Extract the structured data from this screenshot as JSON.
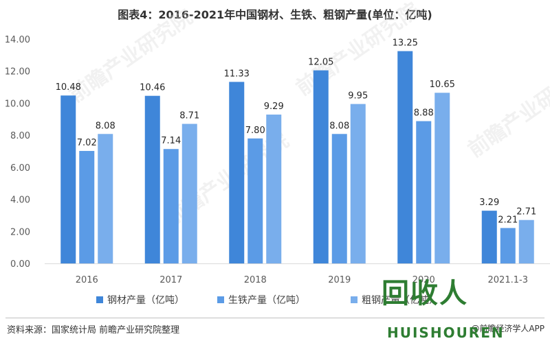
{
  "chart_data": {
    "type": "bar",
    "title": "图表4：2016-2021年中国钢材、生铁、粗钢产量(单位：亿吨)",
    "categories": [
      "2016",
      "2017",
      "2018",
      "2019",
      "2020",
      "2021.1-3"
    ],
    "series": [
      {
        "name": "钢材产量（亿吨）",
        "values": [
          10.48,
          10.46,
          11.33,
          12.05,
          13.25,
          3.29
        ],
        "labels": [
          "10.48",
          "10.46",
          "11.33",
          "12.05",
          "13.25",
          "3.29"
        ]
      },
      {
        "name": "生铁产量（亿吨）",
        "values": [
          7.02,
          7.14,
          7.8,
          8.08,
          8.88,
          2.21
        ],
        "labels": [
          "7.02",
          "7.14",
          "7.80",
          "8.08",
          "8.88",
          "2.21"
        ]
      },
      {
        "name": "粗钢产量（亿吨）",
        "values": [
          8.08,
          8.71,
          9.29,
          9.95,
          10.65,
          2.71
        ],
        "labels": [
          "8.08",
          "8.71",
          "9.29",
          "9.95",
          "10.65",
          "2.71"
        ]
      }
    ],
    "y_ticks": [
      "0.00",
      "2.00",
      "4.00",
      "6.00",
      "8.00",
      "10.00",
      "12.00",
      "14.00"
    ],
    "ylim": [
      0,
      14
    ],
    "xlabel": "",
    "ylabel": "",
    "grid": false,
    "legend": "bottom"
  },
  "colors": {
    "series": [
      "#3f86d9",
      "#5b9be6",
      "#79aeec"
    ],
    "axis": "#d9d9d9"
  },
  "watermark": "前瞻产业研究院",
  "source": "资料来源：国家统计局 前瞻产业研究院整理",
  "footer_brand": "@前瞻经济学人APP",
  "logo": {
    "main": "回收人",
    "sub": "HUISHOUREN"
  }
}
